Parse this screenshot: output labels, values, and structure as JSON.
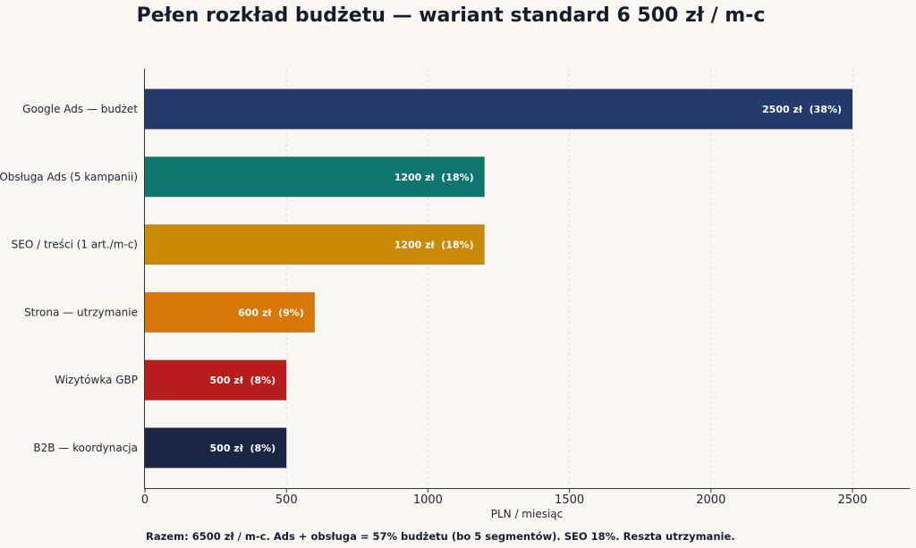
{
  "chart_data": {
    "type": "bar",
    "orientation": "horizontal",
    "title": "Pełen rozkład budżetu — wariant standard 6 500 zł / m-c",
    "xlabel": "PLN / miesiąc",
    "ylabel": "",
    "xlim": [
      0,
      2700
    ],
    "xticks": [
      0,
      500,
      1000,
      1500,
      2000,
      2500
    ],
    "xtick_labels": [
      "0",
      "500",
      "1000",
      "1500",
      "2000",
      "2500"
    ],
    "grid": "vertical dashed",
    "legend": "none",
    "categories": [
      "Google Ads — budżet",
      "Obsługa Ads (5 kampanii)",
      "SEO / treści (1 art./m-c)",
      "Strona — utrzymanie",
      "Wizytówka GBP",
      "B2B — koordynacja"
    ],
    "values": [
      2500,
      1200,
      1200,
      600,
      500,
      500
    ],
    "data_labels": [
      "2500 zł  (38%)",
      "1200 zł  (18%)",
      "1200 zł  (18%)",
      "600 zł  (9%)",
      "500 zł  (8%)",
      "500 zł  (8%)"
    ],
    "colors": [
      "#243a6b",
      "#0f766e",
      "#ca8a04",
      "#d97706",
      "#b91c1c",
      "#1a2744"
    ],
    "footnote": "Razem: 6500 zł / m-c. Ads + obsługa = 57% budżetu (bo 5 segmentów). SEO 18%. Reszta utrzymanie."
  }
}
